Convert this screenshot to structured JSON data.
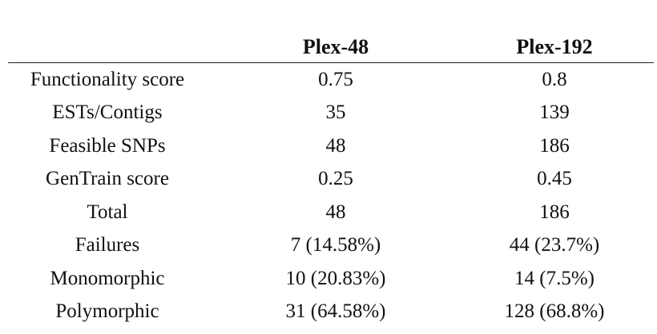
{
  "table": {
    "headers": [
      "",
      "Plex-48",
      "Plex-192"
    ],
    "rows": [
      {
        "label": "Functionality score",
        "plex48": "0.75",
        "plex192": "0.8"
      },
      {
        "label": "ESTs/Contigs",
        "plex48": "35",
        "plex192": "139"
      },
      {
        "label": "Feasible SNPs",
        "plex48": "48",
        "plex192": "186"
      },
      {
        "label": "GenTrain score",
        "plex48": "0.25",
        "plex192": "0.45"
      },
      {
        "label": "Total",
        "plex48": "48",
        "plex192": "186"
      },
      {
        "label": "Failures",
        "plex48": "7 (14.58%)",
        "plex192": "44 (23.7%)"
      },
      {
        "label": "Monomorphic",
        "plex48": "10 (20.83%)",
        "plex192": "14 (7.5%)"
      },
      {
        "label": "Polymorphic",
        "plex48": "31 (64.58%)",
        "plex192": "128 (68.8%)"
      }
    ]
  }
}
